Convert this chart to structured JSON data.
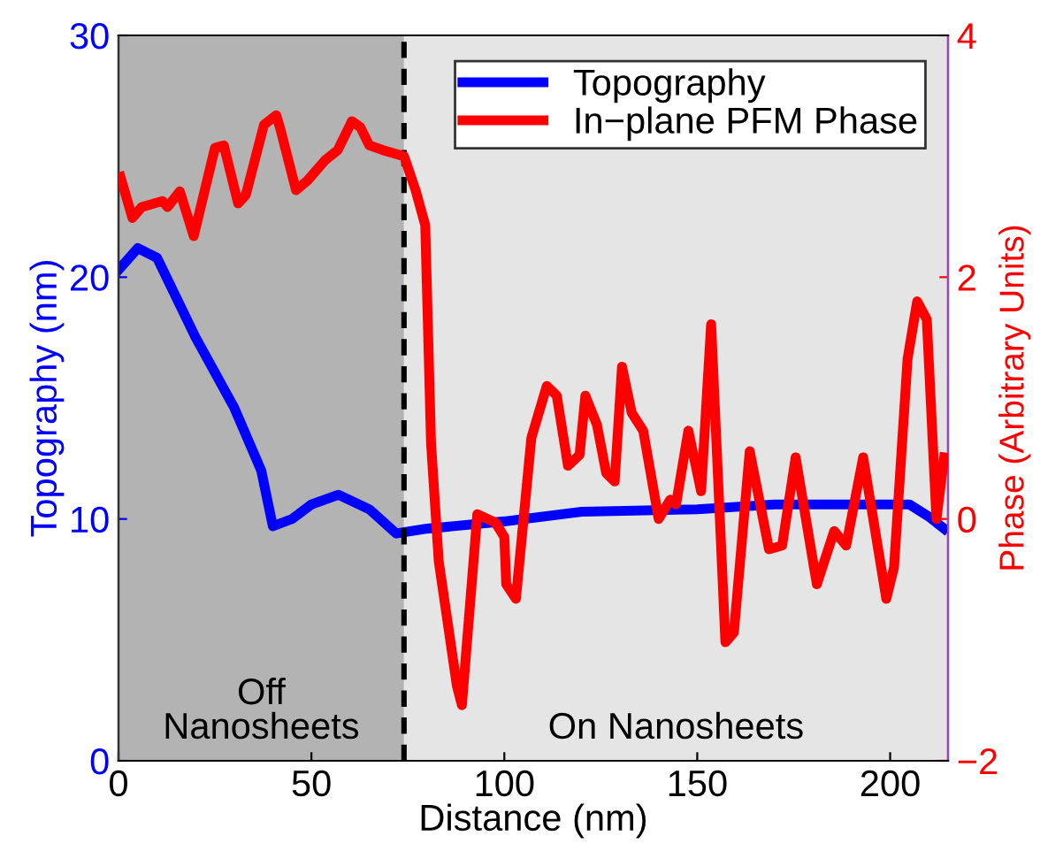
{
  "chart_data": {
    "type": "line",
    "xlabel": "Distance (nm)",
    "ylabel": "Topography (nm)",
    "y2label": "Phase (Arbitrary Units)",
    "xlim": [
      0,
      215
    ],
    "xticks": [
      0,
      50,
      100,
      150,
      200
    ],
    "ylim": [
      0,
      30
    ],
    "yticks": [
      0,
      10,
      20,
      30
    ],
    "y2lim": [
      -2,
      4
    ],
    "y2ticks": [
      -2,
      0,
      2,
      4
    ],
    "grid": false,
    "legend": "top right",
    "marker": "none",
    "line_style": "solid",
    "series": [
      {
        "name": "Topography",
        "color": "#0000ff",
        "axis": "y",
        "x": [
          0,
          5,
          10,
          20,
          30,
          37,
          40,
          45,
          50,
          57,
          65,
          72,
          80,
          100,
          120,
          150,
          170,
          190,
          205,
          210,
          214
        ],
        "values": [
          20.3,
          21.2,
          20.8,
          17.5,
          14.6,
          12,
          9.7,
          10.0,
          10.6,
          11.0,
          10.4,
          9.4,
          9.6,
          9.9,
          10.3,
          10.4,
          10.6,
          10.6,
          10.6,
          10.1,
          9.6
        ]
      },
      {
        "name": "In−plane PFM Phase",
        "color": "#ff0000",
        "axis": "y2",
        "x": [
          0.5,
          3.6,
          6,
          11.4,
          12.7,
          15.9,
          19.5,
          25,
          27.3,
          31,
          33,
          37.7,
          40.9,
          42,
          46,
          49,
          53.6,
          56.8,
          60.5,
          62.7,
          65,
          68.6,
          74,
          77,
          79.5,
          81,
          83,
          87.7,
          89,
          93,
          97.7,
          100,
          100.5,
          103,
          107,
          111,
          113.6,
          116.5,
          119.5,
          121,
          124,
          126.4,
          128.6,
          130.5,
          133,
          136,
          140,
          143,
          144.5,
          147.7,
          151,
          153.6,
          157.3,
          159.5,
          163.6,
          168.6,
          172,
          175.5,
          181,
          185.5,
          188.6,
          193,
          199,
          201,
          204.5,
          207,
          209.5,
          212,
          214
        ],
        "values": [
          2.83,
          2.49,
          2.58,
          2.63,
          2.58,
          2.71,
          2.34,
          3.07,
          3.09,
          2.61,
          2.68,
          3.26,
          3.34,
          3.22,
          2.72,
          2.8,
          2.97,
          3.05,
          3.29,
          3.24,
          3.09,
          3.05,
          3.0,
          2.72,
          2.43,
          0.63,
          -0.35,
          -1.38,
          -1.54,
          0.04,
          -0.03,
          -0.15,
          -0.54,
          -0.66,
          0.67,
          1.1,
          1.02,
          0.44,
          0.53,
          1.02,
          0.78,
          0.38,
          0.31,
          1.26,
          0.88,
          0.73,
          0.0,
          0.16,
          0.12,
          0.73,
          0.23,
          1.61,
          -1.02,
          -0.94,
          0.56,
          -0.25,
          -0.22,
          0.51,
          -0.54,
          -0.1,
          -0.22,
          0.51,
          -0.66,
          -0.4,
          1.32,
          1.8,
          1.65,
          0.0,
          0.51
        ]
      }
    ],
    "bands": [
      {
        "axis": "x",
        "from": 0,
        "to": 74,
        "label": "Off\nNanosheets",
        "color": "#b3b3b3"
      },
      {
        "axis": "x",
        "from": 74,
        "to": 215,
        "label": "On Nanosheets",
        "color": "#e5e5e5"
      }
    ],
    "ref_lines": [
      {
        "axis": "x",
        "value": 74,
        "color": "#000000",
        "line_style": "dashed"
      }
    ]
  }
}
